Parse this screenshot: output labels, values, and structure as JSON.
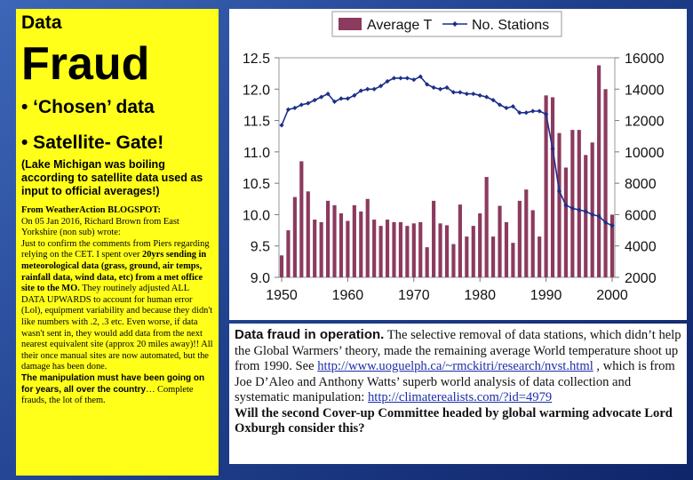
{
  "left_panel": {
    "title_small": "Data",
    "title_big": "Fraud",
    "bullet1": "• ‘Chosen’ data",
    "bullet2": "• Satellite- Gate!",
    "paren": "(Lake Michigan was boiling according to satellite data used as input to official averages!)",
    "blog_source": "From WeatherAction BLOGSPOT:",
    "blog_p1": "On 05 Jan 2016, Richard Brown from East Yorkshire (non sub) wrote:",
    "blog_p2a": "Just to confirm the comments from Piers regarding relying on the CET. I spent over ",
    "blog_p2b": "20yrs sending in meteorological data (grass, ground, air temps, rainfall data, wind data, etc) from a met office site to the MO.",
    "blog_p2c": " They routinely adjusted ALL DATA UPWARDS to account for human error (Lol), equipment variability and because they didn't like numbers with .2, .3 etc. Even worse, if data wasn't sent in, they would add data from the next nearest equivalent site (approx 20 miles away)!! All their once manual sites are now automated, but the damage has been done.",
    "blog_manip": "The manipulation must have been going on for years, all over the country",
    "blog_tail": "… Complete frauds, the lot of them."
  },
  "text_box": {
    "head": "Data fraud in operation.",
    "body1": " The selective removal of data stations, which didn’t help the Global Warmers’ theory, made the remaining average World temperature shoot up from 1990.  See ",
    "link1": "http://www.uoguelph.ca/~rmckitri/research/nvst.html",
    "body2": " , which is from Joe D’Aleo and Anthony Watts’ superb world analysis of data collection and systematic manipulation: ",
    "link2": "http://climaterealists.com/?id=4979",
    "question": "Will the second Cover-up Committee headed by global warming advocate Lord Oxburgh consider this?"
  },
  "chart_data": {
    "type": "bar+line",
    "colors": {
      "bar": "#8c3a5e",
      "line": "#1c2f8a"
    },
    "legend": [
      "Average T",
      "No. Stations"
    ],
    "x": [
      1950,
      1951,
      1952,
      1953,
      1954,
      1955,
      1956,
      1957,
      1958,
      1959,
      1960,
      1961,
      1962,
      1963,
      1964,
      1965,
      1966,
      1967,
      1968,
      1969,
      1970,
      1971,
      1972,
      1973,
      1974,
      1975,
      1976,
      1977,
      1978,
      1979,
      1980,
      1981,
      1982,
      1983,
      1984,
      1985,
      1986,
      1987,
      1988,
      1989,
      1990,
      1991,
      1992,
      1993,
      1994,
      1995,
      1996,
      1997,
      1998,
      1999,
      2000
    ],
    "series": [
      {
        "name": "Average T",
        "axis": "left",
        "values": [
          9.35,
          9.75,
          10.28,
          10.85,
          10.37,
          9.92,
          9.88,
          10.22,
          10.15,
          10.02,
          9.9,
          10.15,
          10.05,
          10.25,
          9.92,
          9.82,
          9.92,
          9.88,
          9.88,
          9.82,
          9.86,
          9.88,
          9.48,
          10.22,
          9.86,
          9.83,
          9.53,
          10.16,
          9.65,
          9.82,
          10.02,
          10.6,
          9.65,
          10.14,
          9.88,
          9.55,
          10.22,
          10.4,
          10.07,
          9.65,
          11.9,
          11.87,
          11.3,
          10.75,
          11.35,
          11.35,
          10.95,
          11.15,
          12.38,
          12.0,
          10.0
        ]
      },
      {
        "name": "No. Stations",
        "axis": "right",
        "values": [
          11700,
          12700,
          12800,
          13000,
          13100,
          13300,
          13500,
          13700,
          13200,
          13400,
          13400,
          13600,
          13900,
          14000,
          14000,
          14200,
          14500,
          14700,
          14700,
          14700,
          14600,
          14800,
          14300,
          14100,
          14000,
          14100,
          13800,
          13800,
          13700,
          13700,
          13600,
          13500,
          13300,
          13000,
          12800,
          12900,
          12500,
          12500,
          12600,
          12600,
          12400,
          10200,
          7500,
          6600,
          6400,
          6300,
          6200,
          6000,
          5900,
          5500,
          5300
        ]
      }
    ],
    "xticks": [
      1950,
      1960,
      1970,
      1980,
      1990,
      2000
    ],
    "yleft": {
      "min": 9.0,
      "max": 12.5,
      "ticks": [
        "9.0",
        "9.5",
        "10.0",
        "10.5",
        "11.0",
        "11.5",
        "12.0",
        "12.5"
      ]
    },
    "yright": {
      "min": 2000,
      "max": 16000,
      "ticks": [
        "2000",
        "4000",
        "6000",
        "8000",
        "10000",
        "12000",
        "14000",
        "16000"
      ]
    },
    "grid": false
  }
}
